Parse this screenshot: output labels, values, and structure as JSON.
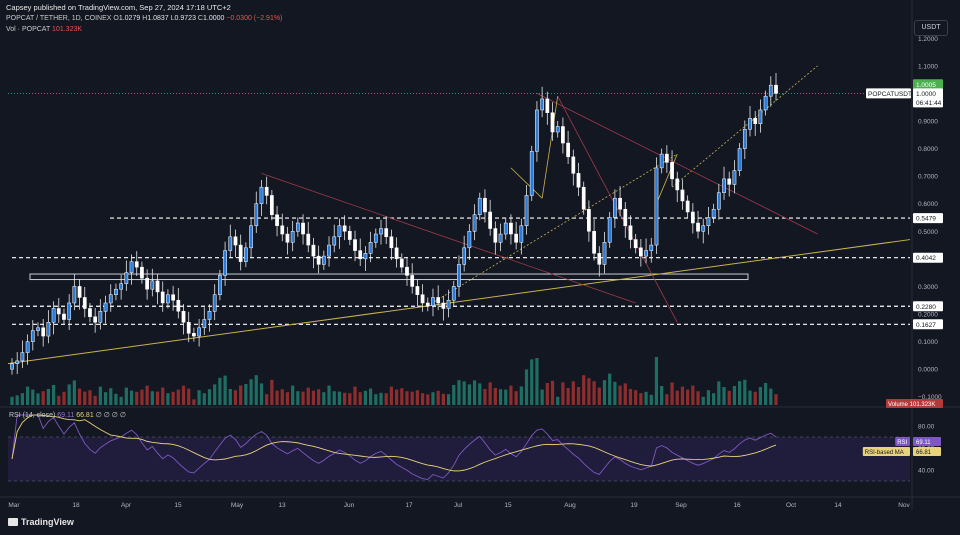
{
  "header": {
    "publisher": "Capsey published on TradingView.com, Sep 27, 2024 17:18 UTC+2",
    "symbol": "POPCAT / TETHER, 1D, COINEX",
    "ohlc": {
      "o_label": "O",
      "open": "1.0279",
      "h_label": "H",
      "high": "1.0837",
      "l_label": "L",
      "low": "0.9723",
      "c_label": "C",
      "close": "1.0000",
      "change": "−0.0300 (−2.91%)"
    },
    "volume_label": "Vol · POPCAT",
    "volume_value": "101.323K",
    "rsi_label": "RSI (14, close)",
    "rsi_value": "69.11",
    "rsi_ma_value": "66.81",
    "rsi_extra": "∅ ∅ ∅ ∅"
  },
  "currency": "USDT",
  "footer": {
    "brand": "TradingView",
    "logo_icon": "tradingview-logo-icon"
  },
  "colors": {
    "bg": "#131722",
    "up": "#2a7ad8",
    "up_border": "#ffffff",
    "down": "#ffffff",
    "vol_up": "#1e6e63",
    "vol_down": "#8e2d2d",
    "rsi": "#7e57c2",
    "rsi_ma": "#e8d27a",
    "trend_yellow": "#c9b34d",
    "trend_red": "#a23a4a",
    "level": "#ffffff",
    "last_price": "#26a69a"
  },
  "chart_data": {
    "type": "candlestick",
    "price_axis": {
      "ticks": [
        "1.2000",
        "1.1000",
        "1.0000",
        "0.9000",
        "0.8000",
        "0.7000",
        "0.6000",
        "0.5000",
        "0.4000",
        "0.3000",
        "0.2000",
        "0.1000",
        "0.0000",
        "−0.1000"
      ],
      "range": [
        -0.13,
        1.23
      ]
    },
    "time_axis": {
      "ticks": [
        "Mar",
        "18",
        "Apr",
        "15",
        "May",
        "13",
        "Jun",
        "17",
        "Jul",
        "15",
        "Aug",
        "19",
        "Sep",
        "16",
        "Oct",
        "14",
        "Nov"
      ]
    },
    "price_labels": [
      {
        "text": "1.0005",
        "value": 1.0005,
        "kind": "last"
      },
      {
        "text": "1.0000",
        "value": 1.0,
        "kind": "close"
      },
      {
        "text": "POPCATUSDT",
        "value": 1.0,
        "kind": "symbol"
      },
      {
        "text": "06:41:44",
        "value": 0.975,
        "kind": "countdown"
      },
      {
        "text": "0.5479",
        "value": 0.5479,
        "kind": "level"
      },
      {
        "text": "0.4042",
        "value": 0.4042,
        "kind": "level"
      },
      {
        "text": "0.2280",
        "value": 0.228,
        "kind": "level"
      },
      {
        "text": "0.1627",
        "value": 0.1627,
        "kind": "level"
      }
    ],
    "horizontal_levels": [
      0.5479,
      0.4042,
      0.228,
      0.1627
    ],
    "support_zone": [
      0.325,
      0.345
    ],
    "closes": [
      0.02,
      0.03,
      0.06,
      0.1,
      0.14,
      0.15,
      0.12,
      0.17,
      0.22,
      0.2,
      0.18,
      0.24,
      0.3,
      0.26,
      0.22,
      0.19,
      0.17,
      0.21,
      0.24,
      0.27,
      0.29,
      0.31,
      0.35,
      0.39,
      0.37,
      0.33,
      0.29,
      0.32,
      0.28,
      0.24,
      0.27,
      0.25,
      0.21,
      0.17,
      0.13,
      0.12,
      0.15,
      0.18,
      0.21,
      0.27,
      0.34,
      0.43,
      0.48,
      0.45,
      0.39,
      0.44,
      0.52,
      0.6,
      0.66,
      0.63,
      0.56,
      0.52,
      0.49,
      0.46,
      0.5,
      0.53,
      0.49,
      0.45,
      0.41,
      0.38,
      0.41,
      0.45,
      0.48,
      0.52,
      0.5,
      0.47,
      0.43,
      0.4,
      0.42,
      0.46,
      0.49,
      0.51,
      0.48,
      0.44,
      0.4,
      0.37,
      0.34,
      0.3,
      0.27,
      0.24,
      0.23,
      0.26,
      0.24,
      0.22,
      0.25,
      0.3,
      0.38,
      0.44,
      0.5,
      0.56,
      0.62,
      0.57,
      0.51,
      0.46,
      0.49,
      0.53,
      0.49,
      0.46,
      0.52,
      0.63,
      0.79,
      0.94,
      0.98,
      0.93,
      0.86,
      0.88,
      0.82,
      0.77,
      0.71,
      0.66,
      0.58,
      0.5,
      0.42,
      0.38,
      0.46,
      0.55,
      0.62,
      0.58,
      0.52,
      0.47,
      0.44,
      0.41,
      0.43,
      0.45,
      0.73,
      0.78,
      0.75,
      0.69,
      0.65,
      0.61,
      0.57,
      0.53,
      0.5,
      0.52,
      0.55,
      0.58,
      0.64,
      0.69,
      0.67,
      0.72,
      0.8,
      0.87,
      0.91,
      0.89,
      0.94,
      0.99,
      1.03,
      1.0
    ],
    "rsi_axis": {
      "ticks": [
        "80.00",
        "60.00",
        "40.00"
      ],
      "range": [
        20,
        90
      ],
      "band": [
        30,
        70
      ]
    },
    "rsi_labels": [
      {
        "text": "RSI",
        "value": "69.11"
      },
      {
        "text": "RSI-based MA",
        "value": "66.81"
      }
    ],
    "volume_label": {
      "text": "Volume",
      "value": "101.323K"
    }
  }
}
